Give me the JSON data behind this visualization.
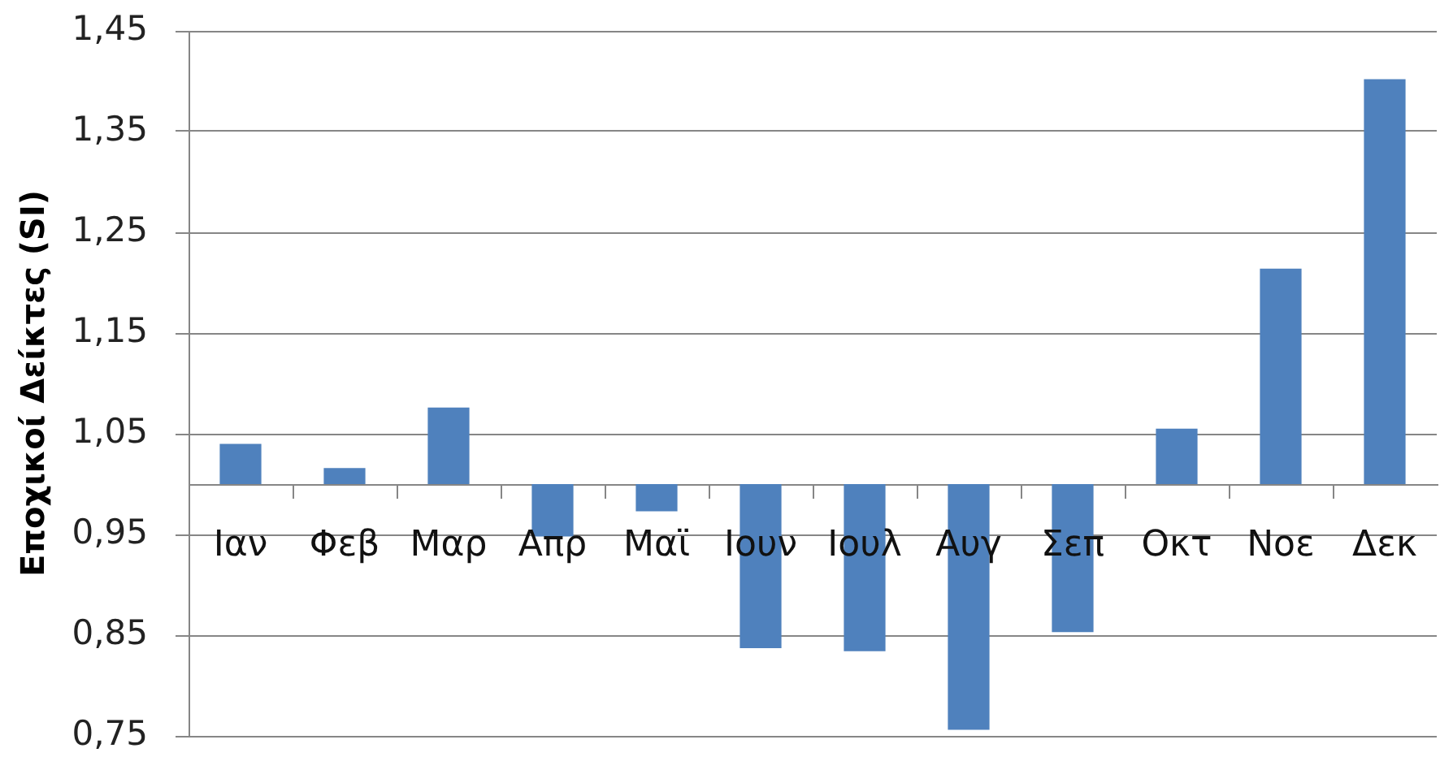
{
  "chart_data": {
    "type": "bar",
    "ylabel": "Εποχικοί Δείκτες (SI)",
    "categories": [
      "Ιαν",
      "Φεβ",
      "Μαρ",
      "Απρ",
      "Μαϊ",
      "Ιουν",
      "Ιουλ",
      "Αυγ",
      "Σεπ",
      "Οκτ",
      "Νοε",
      "Δεκ"
    ],
    "base": [
      1,
      1,
      1,
      1,
      1,
      1,
      1,
      1,
      1,
      1,
      1,
      1
    ],
    "values": [
      0.04,
      0.016,
      0.076,
      -0.052,
      -0.027,
      -0.163,
      -0.166,
      -0.244,
      -0.147,
      0.055,
      0.214,
      0.402
    ],
    "color": "#4f81bd",
    "ylim": [
      0.75,
      1.45
    ],
    "yticks": [
      {
        "value": 0.75,
        "label": "0,75"
      },
      {
        "value": 0.85,
        "label": "0,85"
      },
      {
        "value": 0.95,
        "label": "0,95"
      },
      {
        "value": 1.05,
        "label": "1,05"
      },
      {
        "value": 1.15,
        "label": "1,15"
      },
      {
        "value": 1.25,
        "label": "1,25"
      },
      {
        "value": 1.35,
        "label": "1,35"
      },
      {
        "value": 1.45,
        "label": "1,45"
      }
    ],
    "grid": "y"
  }
}
